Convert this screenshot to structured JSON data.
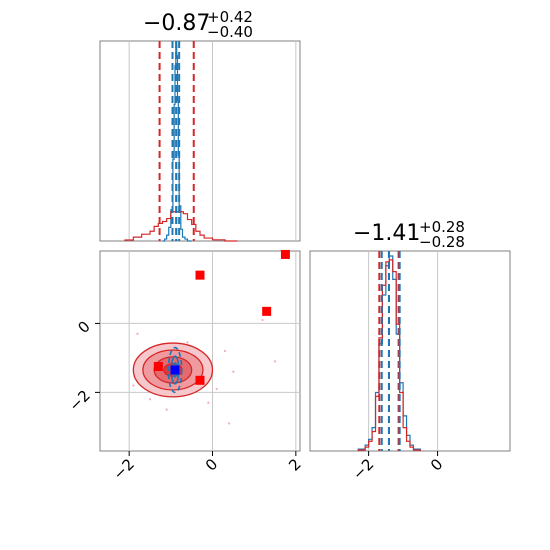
{
  "chart_data": [
    {
      "type": "histogram",
      "panel": "marginal-1",
      "title": {
        "median": "−0.87",
        "plus": "+0.42",
        "minus": "−0.40"
      },
      "xlim": [
        -2.7,
        2.1
      ],
      "xticks": [
        -2,
        0,
        2
      ],
      "grid": true,
      "vlines": {
        "red": [
          -1.27,
          -0.87,
          -0.45
        ],
        "blue": [
          -0.96,
          -0.87,
          -0.8
        ]
      },
      "series": [
        {
          "color": "#1f77b4",
          "bins": [
            -1.2,
            -1.15,
            -1.1,
            -1.05,
            -1.0,
            -0.95,
            -0.92,
            -0.9,
            -0.88,
            -0.86,
            -0.84,
            -0.82,
            -0.8,
            -0.76,
            -0.72,
            -0.66,
            -0.6,
            -0.5
          ],
          "heights": [
            0.0,
            0.01,
            0.03,
            0.07,
            0.16,
            0.42,
            0.7,
            0.9,
            1.0,
            0.95,
            0.72,
            0.44,
            0.18,
            0.06,
            0.02,
            0.01,
            0.0
          ]
        },
        {
          "color": "#d62728",
          "bins": [
            -2.1,
            -1.9,
            -1.7,
            -1.5,
            -1.4,
            -1.3,
            -1.2,
            -1.1,
            -1.0,
            -0.9,
            -0.8,
            -0.7,
            -0.6,
            -0.5,
            -0.4,
            -0.3,
            -0.2,
            0.0,
            0.3,
            0.6
          ],
          "heights": [
            0.005,
            0.02,
            0.035,
            0.05,
            0.075,
            0.09,
            0.1,
            0.115,
            0.15,
            0.15,
            0.15,
            0.14,
            0.11,
            0.085,
            0.05,
            0.03,
            0.015,
            0.006,
            0.0
          ]
        }
      ]
    },
    {
      "type": "histogram",
      "panel": "marginal-2",
      "title": {
        "median": "−1.41",
        "plus": "+0.28",
        "minus": "−0.28"
      },
      "xlim": [
        -3.7,
        2.1
      ],
      "xticks": [
        -2,
        0
      ],
      "grid": true,
      "vlines": {
        "red": [
          -1.69,
          -1.41,
          -1.13
        ],
        "blue": [
          -1.62,
          -1.41,
          -1.1
        ]
      },
      "series": [
        {
          "color": "#1f77b4",
          "bins": [
            -2.3,
            -2.1,
            -2.0,
            -1.9,
            -1.8,
            -1.7,
            -1.6,
            -1.5,
            -1.4,
            -1.3,
            -1.2,
            -1.1,
            -1.0,
            -0.9,
            -0.8,
            -0.7,
            -0.5
          ],
          "heights": [
            0.01,
            0.03,
            0.06,
            0.12,
            0.3,
            0.55,
            0.8,
            0.95,
            1.0,
            0.88,
            0.6,
            0.35,
            0.18,
            0.08,
            0.03,
            0.01
          ]
        },
        {
          "color": "#d62728",
          "bins": [
            -2.3,
            -2.1,
            -2.0,
            -1.9,
            -1.8,
            -1.7,
            -1.6,
            -1.5,
            -1.4,
            -1.3,
            -1.2,
            -1.1,
            -1.0,
            -0.9,
            -0.8,
            -0.7,
            -0.5
          ],
          "heights": [
            0.005,
            0.02,
            0.05,
            0.1,
            0.28,
            0.58,
            0.85,
            0.97,
            0.98,
            0.92,
            0.65,
            0.3,
            0.12,
            0.05,
            0.02,
            0.005
          ]
        }
      ]
    },
    {
      "type": "scatter-contour",
      "panel": "joint",
      "xlim": [
        -2.7,
        2.1
      ],
      "ylim": [
        -3.7,
        2.1
      ],
      "xticks": [
        -2,
        0,
        2
      ],
      "yticks": [
        0,
        -2
      ],
      "grid": true,
      "red_contours": {
        "center": [
          -0.95,
          -1.35
        ],
        "radii": [
          [
            0.95,
            0.78
          ],
          [
            0.72,
            0.58
          ],
          [
            0.45,
            0.38
          ],
          [
            0.22,
            0.18
          ]
        ]
      },
      "blue_contours": {
        "center": [
          -0.9,
          -1.35
        ],
        "radii": [
          [
            0.16,
            0.65
          ],
          [
            0.09,
            0.4
          ],
          [
            0.05,
            0.2
          ]
        ]
      },
      "red_squares": [
        [
          -0.3,
          1.4
        ],
        [
          1.75,
          2.0
        ],
        [
          1.3,
          0.35
        ],
        [
          -1.3,
          -1.25
        ],
        [
          -0.3,
          -1.65
        ]
      ],
      "blue_square": [
        -0.9,
        -1.35
      ],
      "pink_points": [
        [
          -1.8,
          -0.3
        ],
        [
          -1.6,
          -0.9
        ],
        [
          -1.2,
          -0.6
        ],
        [
          -0.6,
          -0.55
        ],
        [
          -0.2,
          -1.0
        ],
        [
          0.3,
          -0.8
        ],
        [
          -1.9,
          -1.8
        ],
        [
          -1.5,
          -2.2
        ],
        [
          -0.5,
          -2.0
        ],
        [
          0.1,
          -1.9
        ],
        [
          0.5,
          -1.4
        ],
        [
          1.5,
          -1.1
        ],
        [
          0.4,
          -2.9
        ],
        [
          -0.1,
          -2.3
        ],
        [
          -1.1,
          -2.5
        ],
        [
          1.2,
          0.1
        ]
      ]
    }
  ]
}
